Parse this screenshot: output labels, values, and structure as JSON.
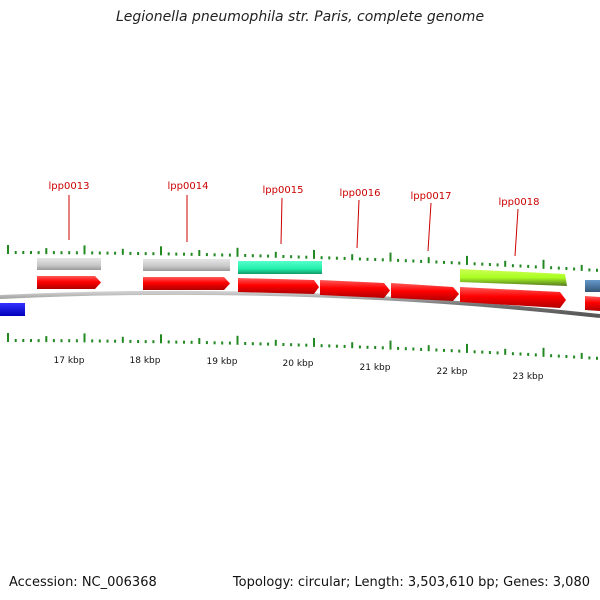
{
  "title": "Legionella pneumophila str. Paris, complete genome",
  "footer": {
    "accession": "Accession: NC_006368",
    "summary": "Topology: circular; Length: 3,503,610 bp; Genes: 3,080"
  },
  "gene_labels": [
    "lpp0013",
    "lpp0014",
    "lpp0015",
    "lpp0016",
    "lpp0017",
    "lpp0018"
  ],
  "scale_labels": [
    "17 kbp",
    "18 kbp",
    "19 kbp",
    "20 kbp",
    "21 kbp",
    "22 kbp",
    "23 kbp"
  ],
  "colors": {
    "label_red": "#cc0000",
    "gene_red": "#ff0000",
    "gene_blue": "#0000ee",
    "feature_gray": "#c8c8c8",
    "feature_teal": "#22eeaa",
    "feature_lime": "#aaff22",
    "feature_steel": "#4477aa",
    "tick_green": "#228822",
    "backbone": "#888888"
  }
}
